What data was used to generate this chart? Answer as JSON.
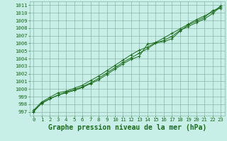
{
  "title": "Graphe pression niveau de la mer (hPa)",
  "xlabel_hours": [
    0,
    1,
    2,
    3,
    4,
    5,
    6,
    7,
    8,
    9,
    10,
    11,
    12,
    13,
    14,
    15,
    16,
    17,
    18,
    19,
    20,
    21,
    22,
    23
  ],
  "line1": [
    997.0,
    998.2,
    998.7,
    999.2,
    999.5,
    999.8,
    1000.2,
    1000.7,
    1001.2,
    1001.9,
    1002.6,
    1003.3,
    1003.9,
    1004.3,
    1005.9,
    1006.1,
    1006.2,
    1006.6,
    1007.6,
    1008.4,
    1008.9,
    1009.4,
    1010.3,
    1010.6
  ],
  "line2": [
    997.1,
    998.1,
    998.7,
    999.2,
    999.6,
    999.9,
    1000.3,
    1000.8,
    1001.4,
    1002.1,
    1002.8,
    1003.5,
    1004.1,
    1004.7,
    1005.3,
    1006.0,
    1006.4,
    1006.9,
    1007.7,
    1008.2,
    1008.7,
    1009.2,
    1009.9,
    1010.8
  ],
  "line3": [
    997.2,
    998.3,
    998.9,
    999.5,
    999.7,
    1000.1,
    1000.5,
    1001.1,
    1001.7,
    1002.4,
    1003.1,
    1003.8,
    1004.5,
    1005.1,
    1005.5,
    1006.1,
    1006.7,
    1007.3,
    1007.9,
    1008.5,
    1009.1,
    1009.6,
    1010.1,
    1010.9
  ],
  "line_color": "#1a6b1a",
  "marker_color": "#1a6b1a",
  "bg_color": "#c8eee8",
  "grid_color": "#7aaa99",
  "ylim": [
    996.5,
    1011.5
  ],
  "xlim": [
    -0.5,
    23.5
  ],
  "yticks": [
    997,
    998,
    999,
    1000,
    1001,
    1002,
    1003,
    1004,
    1005,
    1006,
    1007,
    1008,
    1009,
    1010,
    1011
  ],
  "xticks": [
    0,
    1,
    2,
    3,
    4,
    5,
    6,
    7,
    8,
    9,
    10,
    11,
    12,
    13,
    14,
    15,
    16,
    17,
    18,
    19,
    20,
    21,
    22,
    23
  ],
  "title_fontsize": 7,
  "tick_fontsize": 5.2,
  "marker": "+",
  "marker_size": 3.5,
  "linewidth": 0.7
}
